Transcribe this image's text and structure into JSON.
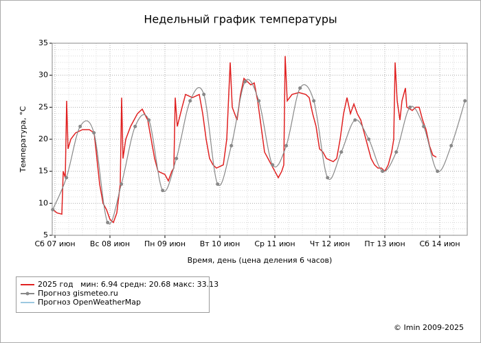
{
  "chart_data": {
    "type": "line",
    "title": "Недельный график температуры",
    "ylabel": "Температура, °C",
    "xlabel": "Время, день (цена деления 6 часов)",
    "footer": "© Imin 2009-2025",
    "xlim": [
      -1.2,
      180
    ],
    "ylim": [
      5,
      35
    ],
    "yticks": [
      5,
      10,
      15,
      20,
      25,
      30,
      35
    ],
    "yminorticks": [
      6,
      7,
      8,
      9,
      11,
      12,
      13,
      14,
      16,
      17,
      18,
      19,
      21,
      22,
      23,
      24,
      26,
      27,
      28,
      29,
      31,
      32,
      33,
      34
    ],
    "xticks": [
      {
        "value": 0,
        "label": "Сб 07 июн"
      },
      {
        "value": 24,
        "label": "Вс 08 июн"
      },
      {
        "value": 48,
        "label": "Пн 09 июн"
      },
      {
        "value": 72,
        "label": "Вт 10 июн"
      },
      {
        "value": 96,
        "label": "Ср 11 июн"
      },
      {
        "value": 120,
        "label": "Чт 12 июн"
      },
      {
        "value": 144,
        "label": "Пт 13 июн"
      },
      {
        "value": 168,
        "label": "Сб 14 июн"
      }
    ],
    "xminorticks": [
      6,
      12,
      18,
      30,
      36,
      42,
      54,
      60,
      66,
      78,
      84,
      90,
      102,
      108,
      114,
      126,
      132,
      138,
      150,
      156,
      162,
      174
    ],
    "grid": true,
    "series": [
      {
        "name": "2025 год   мин: 6.94 средн: 20.68 макс: 33.13",
        "color": "#e02020",
        "marker": false,
        "x": [
          -0.9,
          0.9,
          3,
          3.6,
          4.5,
          5.1,
          5.7,
          6.9,
          9,
          12,
          15,
          17.1,
          18,
          19.5,
          21,
          22.5,
          24,
          25.5,
          27,
          28.5,
          29.1,
          29.7,
          30.9,
          33,
          36,
          38.1,
          40.5,
          42,
          43.5,
          45,
          48,
          49.5,
          51,
          51.9,
          52.5,
          53.4,
          55.5,
          57,
          60,
          63,
          64.5,
          66,
          67.5,
          69,
          70.5,
          73.5,
          75,
          76.5,
          77.4,
          79.5,
          81,
          82.5,
          84,
          85.5,
          87,
          88.5,
          90,
          91.5,
          93,
          94.5,
          96,
          97.5,
          99,
          99.9,
          100.5,
          101.4,
          103.5,
          106.5,
          109.5,
          111,
          112.5,
          114,
          115.5,
          117,
          118.5,
          121.5,
          123,
          124.5,
          126,
          127.5,
          129,
          130.5,
          132,
          133.5,
          135,
          136.5,
          138,
          139.5,
          141,
          142.5,
          144,
          145.5,
          147,
          147.9,
          148.5,
          149.4,
          150.6,
          151.5,
          153,
          153.6,
          156,
          157.5,
          159,
          160.5,
          162,
          163.5,
          165,
          166.5
        ],
        "values": [
          9,
          8.5,
          8.3,
          15,
          14,
          26,
          18.5,
          20,
          21,
          21.5,
          21.5,
          21,
          18,
          13,
          10,
          9,
          7.5,
          7,
          8.5,
          13,
          26.5,
          17,
          20,
          22,
          24,
          24.7,
          23,
          20,
          17,
          15,
          14.5,
          13.5,
          15,
          15.5,
          26.5,
          22,
          25,
          27,
          26.5,
          27,
          24,
          20,
          17,
          16,
          15.5,
          16,
          20,
          32,
          25,
          23,
          27,
          29.5,
          29,
          28.5,
          28.8,
          26,
          22,
          18,
          17,
          16,
          15,
          14,
          15,
          16,
          33,
          26,
          27,
          27.3,
          27,
          26.5,
          24,
          22,
          18.5,
          18,
          17,
          16.5,
          17,
          20,
          24,
          26.5,
          24,
          25.5,
          24,
          23,
          21,
          19,
          17,
          16,
          15.5,
          15.5,
          15,
          16,
          18,
          20,
          32,
          26,
          23,
          26,
          28,
          25,
          24.5,
          25,
          25,
          23,
          21.5,
          19,
          17.5,
          17.2
        ]
      },
      {
        "name": "Прогноз gismeteo.ru",
        "color": "#888888",
        "marker": true,
        "x": [
          -1,
          5,
          11,
          17,
          23,
          29,
          35,
          41,
          47,
          53,
          59,
          65,
          71,
          77,
          83,
          89,
          95,
          101,
          107,
          113,
          119,
          125,
          131,
          137,
          143,
          149,
          155,
          161,
          167,
          173,
          179
        ],
        "values": [
          9,
          14,
          22,
          21,
          7,
          13,
          22,
          23,
          12,
          17,
          26,
          27,
          13,
          19,
          29,
          26,
          16,
          19,
          28,
          26,
          14,
          18,
          23,
          20,
          15,
          18,
          25,
          22,
          15,
          19,
          26
        ]
      },
      {
        "name": "Прогноз OpenWeatherMap",
        "color": "#9cc8e0",
        "marker": false,
        "x": [],
        "values": []
      }
    ]
  }
}
